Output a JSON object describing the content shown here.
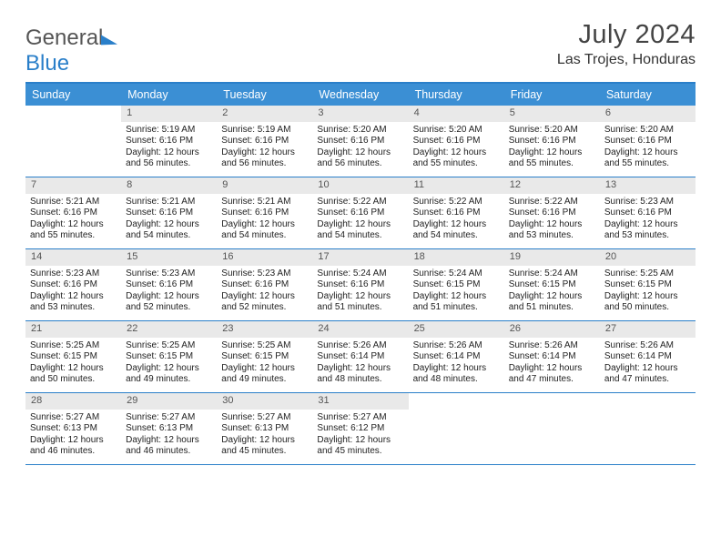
{
  "brand": {
    "word1": "General",
    "word2": "Blue"
  },
  "title": "July 2024",
  "location": "Las Trojes, Honduras",
  "colors": {
    "header_bg": "#3b8fd4",
    "border": "#2a7fc9",
    "daynum_bg": "#e9e9e9",
    "text": "#333333",
    "white": "#ffffff"
  },
  "calendar": {
    "day_headers": [
      "Sunday",
      "Monday",
      "Tuesday",
      "Wednesday",
      "Thursday",
      "Friday",
      "Saturday"
    ],
    "weeks": [
      [
        {
          "empty": true
        },
        {
          "day": "1",
          "sunrise": "5:19 AM",
          "sunset": "6:16 PM",
          "daylight": "12 hours and 56 minutes."
        },
        {
          "day": "2",
          "sunrise": "5:19 AM",
          "sunset": "6:16 PM",
          "daylight": "12 hours and 56 minutes."
        },
        {
          "day": "3",
          "sunrise": "5:20 AM",
          "sunset": "6:16 PM",
          "daylight": "12 hours and 56 minutes."
        },
        {
          "day": "4",
          "sunrise": "5:20 AM",
          "sunset": "6:16 PM",
          "daylight": "12 hours and 55 minutes."
        },
        {
          "day": "5",
          "sunrise": "5:20 AM",
          "sunset": "6:16 PM",
          "daylight": "12 hours and 55 minutes."
        },
        {
          "day": "6",
          "sunrise": "5:20 AM",
          "sunset": "6:16 PM",
          "daylight": "12 hours and 55 minutes."
        }
      ],
      [
        {
          "day": "7",
          "sunrise": "5:21 AM",
          "sunset": "6:16 PM",
          "daylight": "12 hours and 55 minutes."
        },
        {
          "day": "8",
          "sunrise": "5:21 AM",
          "sunset": "6:16 PM",
          "daylight": "12 hours and 54 minutes."
        },
        {
          "day": "9",
          "sunrise": "5:21 AM",
          "sunset": "6:16 PM",
          "daylight": "12 hours and 54 minutes."
        },
        {
          "day": "10",
          "sunrise": "5:22 AM",
          "sunset": "6:16 PM",
          "daylight": "12 hours and 54 minutes."
        },
        {
          "day": "11",
          "sunrise": "5:22 AM",
          "sunset": "6:16 PM",
          "daylight": "12 hours and 54 minutes."
        },
        {
          "day": "12",
          "sunrise": "5:22 AM",
          "sunset": "6:16 PM",
          "daylight": "12 hours and 53 minutes."
        },
        {
          "day": "13",
          "sunrise": "5:23 AM",
          "sunset": "6:16 PM",
          "daylight": "12 hours and 53 minutes."
        }
      ],
      [
        {
          "day": "14",
          "sunrise": "5:23 AM",
          "sunset": "6:16 PM",
          "daylight": "12 hours and 53 minutes."
        },
        {
          "day": "15",
          "sunrise": "5:23 AM",
          "sunset": "6:16 PM",
          "daylight": "12 hours and 52 minutes."
        },
        {
          "day": "16",
          "sunrise": "5:23 AM",
          "sunset": "6:16 PM",
          "daylight": "12 hours and 52 minutes."
        },
        {
          "day": "17",
          "sunrise": "5:24 AM",
          "sunset": "6:16 PM",
          "daylight": "12 hours and 51 minutes."
        },
        {
          "day": "18",
          "sunrise": "5:24 AM",
          "sunset": "6:15 PM",
          "daylight": "12 hours and 51 minutes."
        },
        {
          "day": "19",
          "sunrise": "5:24 AM",
          "sunset": "6:15 PM",
          "daylight": "12 hours and 51 minutes."
        },
        {
          "day": "20",
          "sunrise": "5:25 AM",
          "sunset": "6:15 PM",
          "daylight": "12 hours and 50 minutes."
        }
      ],
      [
        {
          "day": "21",
          "sunrise": "5:25 AM",
          "sunset": "6:15 PM",
          "daylight": "12 hours and 50 minutes."
        },
        {
          "day": "22",
          "sunrise": "5:25 AM",
          "sunset": "6:15 PM",
          "daylight": "12 hours and 49 minutes."
        },
        {
          "day": "23",
          "sunrise": "5:25 AM",
          "sunset": "6:15 PM",
          "daylight": "12 hours and 49 minutes."
        },
        {
          "day": "24",
          "sunrise": "5:26 AM",
          "sunset": "6:14 PM",
          "daylight": "12 hours and 48 minutes."
        },
        {
          "day": "25",
          "sunrise": "5:26 AM",
          "sunset": "6:14 PM",
          "daylight": "12 hours and 48 minutes."
        },
        {
          "day": "26",
          "sunrise": "5:26 AM",
          "sunset": "6:14 PM",
          "daylight": "12 hours and 47 minutes."
        },
        {
          "day": "27",
          "sunrise": "5:26 AM",
          "sunset": "6:14 PM",
          "daylight": "12 hours and 47 minutes."
        }
      ],
      [
        {
          "day": "28",
          "sunrise": "5:27 AM",
          "sunset": "6:13 PM",
          "daylight": "12 hours and 46 minutes."
        },
        {
          "day": "29",
          "sunrise": "5:27 AM",
          "sunset": "6:13 PM",
          "daylight": "12 hours and 46 minutes."
        },
        {
          "day": "30",
          "sunrise": "5:27 AM",
          "sunset": "6:13 PM",
          "daylight": "12 hours and 45 minutes."
        },
        {
          "day": "31",
          "sunrise": "5:27 AM",
          "sunset": "6:12 PM",
          "daylight": "12 hours and 45 minutes."
        },
        {
          "empty": true
        },
        {
          "empty": true
        },
        {
          "empty": true
        }
      ]
    ],
    "labels": {
      "sunrise_prefix": "Sunrise: ",
      "sunset_prefix": "Sunset: ",
      "daylight_prefix": "Daylight: "
    }
  }
}
